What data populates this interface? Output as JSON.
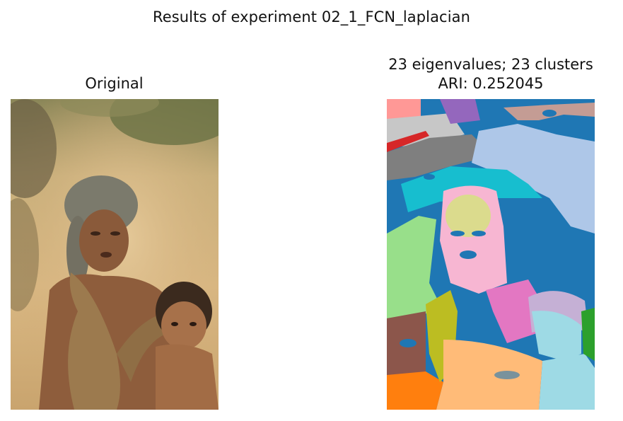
{
  "figure": {
    "title": "Results of experiment 02_1_FCN_laplacian"
  },
  "panels": [
    {
      "title": "Original",
      "image": "photograph of an elderly woman carrying a child in a sling on a dirt road"
    },
    {
      "title_line1": "23 eigenvalues; 23 clusters",
      "title_line2": "ARI: 0.252045",
      "image": "spectral clustering segmentation map with 23 colored clusters"
    }
  ],
  "colors": {
    "tab_blue": "#1f77b4",
    "tab_lightblue": "#aec7e8",
    "tab_orange": "#ff7f0e",
    "tab_lightorange": "#ffbb78",
    "tab_green": "#2ca02c",
    "tab_lightgreen": "#98df8a",
    "tab_red": "#d62728",
    "tab_pink_light": "#ff9896",
    "tab_purple": "#9467bd",
    "tab_lavender": "#c5b0d5",
    "tab_brown": "#8c564b",
    "tab_taupe": "#c49c94",
    "tab_pink": "#e377c2",
    "tab_lightpink": "#f7b6d2",
    "tab_gray": "#7f7f7f",
    "tab_lightgray": "#c7c7c7",
    "tab_olive": "#bcbd22",
    "tab_khaki": "#dbdb8d",
    "tab_cyan": "#17becf",
    "tab_lightcyan": "#9edae5"
  }
}
